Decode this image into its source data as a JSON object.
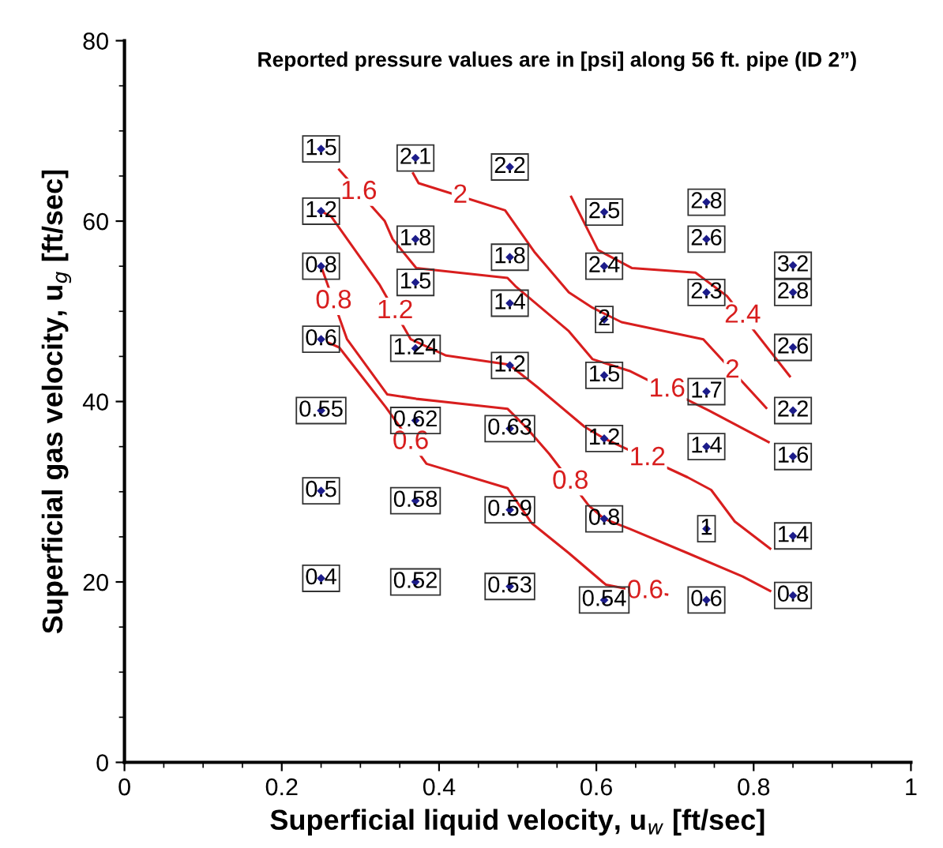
{
  "chart_data": {
    "type": "scatter",
    "title": "Reported pressure values are in [psi] along 56 ft. pipe (ID 2”)",
    "xlabel": "Superficial liquid velocity, u$_{w}$ [ft/sec]",
    "ylabel": "Superficial gas velocity, u$_{g}$ [ft/sec]",
    "xlim": [
      0,
      1
    ],
    "ylim": [
      0,
      80
    ],
    "xticks": [
      0,
      {
        "value": 0.05,
        "label": null
      },
      {
        "value": 0.1,
        "label": null
      },
      {
        "value": 0.15,
        "label": null
      },
      0.2,
      {
        "value": 0.25,
        "label": null
      },
      {
        "value": 0.3,
        "label": null
      },
      {
        "value": 0.35,
        "label": null
      },
      0.4,
      {
        "value": 0.45,
        "label": null
      },
      {
        "value": 0.5,
        "label": null
      },
      {
        "value": 0.55,
        "label": null
      },
      0.6,
      {
        "value": 0.65,
        "label": null
      },
      {
        "value": 0.7,
        "label": null
      },
      {
        "value": 0.75,
        "label": null
      },
      0.8,
      {
        "value": 0.85,
        "label": null
      },
      {
        "value": 0.9,
        "label": null
      },
      {
        "value": 0.95,
        "label": null
      },
      1
    ],
    "yticks": [
      0,
      {
        "value": 5,
        "label": null
      },
      {
        "value": 10,
        "label": null
      },
      {
        "value": 15,
        "label": null
      },
      20,
      {
        "value": 25,
        "label": null
      },
      {
        "value": 30,
        "label": null
      },
      {
        "value": 35,
        "label": null
      },
      40,
      {
        "value": 45,
        "label": null
      },
      {
        "value": 50,
        "label": null
      },
      {
        "value": 55,
        "label": null
      },
      60,
      {
        "value": 65,
        "label": null
      },
      {
        "value": 70,
        "label": null
      },
      {
        "value": 75,
        "label": null
      },
      80
    ],
    "grid": false,
    "series": [
      {
        "color": "#1c1c8a",
        "marker": "diamond",
        "x": [
          0.25,
          0.25,
          0.25,
          0.25,
          0.25,
          0.25,
          0.25,
          0.37,
          0.37,
          0.37,
          0.37,
          0.37,
          0.37,
          0.37,
          0.49,
          0.49,
          0.49,
          0.49,
          0.49,
          0.49,
          0.49,
          0.61,
          0.61,
          0.61,
          0.61,
          0.61,
          0.61,
          0.61,
          0.74,
          0.74,
          0.74,
          0.74,
          0.74,
          0.74,
          0.74,
          0.85,
          0.85,
          0.85,
          0.85,
          0.85,
          0.85,
          0.85
        ],
        "values": [
          68.0,
          61.1,
          55.0,
          46.9,
          39.0,
          30.1,
          20.4,
          67.0,
          58.0,
          53.2,
          45.9,
          37.9,
          29.0,
          20.0,
          66.0,
          56.0,
          50.9,
          44.0,
          37.0,
          28.0,
          19.5,
          61.0,
          55.0,
          49.1,
          42.9,
          35.9,
          27.0,
          18.0,
          62.1,
          58.0,
          52.1,
          41.1,
          35.0,
          25.9,
          18.0,
          55.1,
          52.1,
          46.0,
          39.0,
          33.9,
          25.1,
          18.5
        ]
      },
      {
        "type": "line",
        "color": "#d81e1e",
        "line_style": "solid",
        "x": [
          0.26,
          0.273,
          0.332,
          0.384,
          0.487,
          0.518,
          0.565,
          0.612,
          0.635,
          0.69
        ],
        "values": [
          46.5,
          46.0,
          39.4,
          33.1,
          30.4,
          26.5,
          23.2,
          19.7,
          19.3,
          18.6
        ]
      },
      {
        "type": "line",
        "color": "#d81e1e",
        "line_style": "solid",
        "x": [
          0.25,
          0.283,
          0.334,
          0.371,
          0.487,
          0.51,
          0.54,
          0.59,
          0.61,
          0.642,
          0.716,
          0.786,
          0.821
        ],
        "values": [
          55.0,
          46.9,
          40.8,
          40.3,
          39.2,
          37.2,
          34.2,
          28.5,
          27.0,
          25.9,
          23.2,
          20.6,
          19.0
        ]
      },
      {
        "type": "line",
        "color": "#d81e1e",
        "line_style": "solid",
        "x": [
          0.25,
          0.263,
          0.324,
          0.364,
          0.409,
          0.489,
          0.525,
          0.585,
          0.61,
          0.716,
          0.746,
          0.776,
          0.821
        ],
        "values": [
          61.1,
          60.5,
          53.0,
          46.9,
          45.1,
          44.1,
          41.6,
          37.2,
          35.9,
          31.6,
          30.2,
          26.7,
          23.7
        ]
      },
      {
        "type": "line",
        "color": "#d81e1e",
        "line_style": "solid",
        "x": [
          0.273,
          0.331,
          0.341,
          0.371,
          0.487,
          0.497,
          0.565,
          0.595,
          0.642,
          0.743,
          0.819
        ],
        "values": [
          65.7,
          60.0,
          58.0,
          54.8,
          53.7,
          52.8,
          47.8,
          44.7,
          43.4,
          39.0,
          35.5
        ]
      },
      {
        "type": "line",
        "color": "#d81e1e",
        "line_style": "solid",
        "x": [
          0.367,
          0.374,
          0.484,
          0.522,
          0.565,
          0.595,
          0.632,
          0.736,
          0.816
        ],
        "values": [
          65.3,
          64.2,
          61.2,
          56.5,
          52.1,
          50.4,
          48.8,
          46.9,
          39.3
        ]
      },
      {
        "type": "line",
        "color": "#d81e1e",
        "line_style": "solid",
        "x": [
          0.568,
          0.602,
          0.645,
          0.726,
          0.766,
          0.846
        ],
        "values": [
          62.7,
          56.8,
          54.8,
          54.3,
          51.7,
          42.8
        ]
      }
    ],
    "annotations": [
      {
        "text": "1.5",
        "x": 0.25,
        "y": 68.0
      },
      {
        "text": "1.2",
        "x": 0.25,
        "y": 61.1
      },
      {
        "text": "0.8",
        "x": 0.25,
        "y": 55.0
      },
      {
        "text": "0.6",
        "x": 0.25,
        "y": 46.9
      },
      {
        "text": "0.55",
        "x": 0.25,
        "y": 39.0
      },
      {
        "text": "0.5",
        "x": 0.25,
        "y": 30.1
      },
      {
        "text": "0.4",
        "x": 0.25,
        "y": 20.4
      },
      {
        "text": "2.1",
        "x": 0.37,
        "y": 67.0
      },
      {
        "text": "1.8",
        "x": 0.37,
        "y": 58.0
      },
      {
        "text": "1.5",
        "x": 0.37,
        "y": 53.2
      },
      {
        "text": "1.24",
        "x": 0.37,
        "y": 45.9
      },
      {
        "text": "0.62",
        "x": 0.37,
        "y": 37.9
      },
      {
        "text": "0.58",
        "x": 0.37,
        "y": 29.0
      },
      {
        "text": "0.52",
        "x": 0.37,
        "y": 20.0
      },
      {
        "text": "2.2",
        "x": 0.49,
        "y": 66.0
      },
      {
        "text": "1.8",
        "x": 0.49,
        "y": 56.0
      },
      {
        "text": "1.4",
        "x": 0.49,
        "y": 50.9
      },
      {
        "text": "1.2",
        "x": 0.49,
        "y": 44.0
      },
      {
        "text": "0.63",
        "x": 0.49,
        "y": 37.0
      },
      {
        "text": "0.59",
        "x": 0.49,
        "y": 28.0
      },
      {
        "text": "0.53",
        "x": 0.49,
        "y": 19.5
      },
      {
        "text": "2.5",
        "x": 0.61,
        "y": 61.0
      },
      {
        "text": "2.4",
        "x": 0.61,
        "y": 55.0
      },
      {
        "text": "2",
        "x": 0.61,
        "y": 49.1
      },
      {
        "text": "1.5",
        "x": 0.61,
        "y": 42.9
      },
      {
        "text": "1.2",
        "x": 0.61,
        "y": 35.9
      },
      {
        "text": "0.8",
        "x": 0.61,
        "y": 27.0
      },
      {
        "text": "0.54",
        "x": 0.61,
        "y": 18.0
      },
      {
        "text": "2.8",
        "x": 0.74,
        "y": 62.1
      },
      {
        "text": "2.6",
        "x": 0.74,
        "y": 58.0
      },
      {
        "text": "2.3",
        "x": 0.74,
        "y": 52.1
      },
      {
        "text": "1.7",
        "x": 0.74,
        "y": 41.1
      },
      {
        "text": "1.4",
        "x": 0.74,
        "y": 35.0
      },
      {
        "text": "1",
        "x": 0.74,
        "y": 25.9
      },
      {
        "text": "0.6",
        "x": 0.74,
        "y": 18.0
      },
      {
        "text": "3.2",
        "x": 0.85,
        "y": 55.1
      },
      {
        "text": "2.8",
        "x": 0.85,
        "y": 52.1
      },
      {
        "text": "2.6",
        "x": 0.85,
        "y": 46.0
      },
      {
        "text": "2.2",
        "x": 0.85,
        "y": 39.0
      },
      {
        "text": "1.6",
        "x": 0.85,
        "y": 33.9
      },
      {
        "text": "1.4",
        "x": 0.85,
        "y": 25.1
      },
      {
        "text": "0.8",
        "x": 0.85,
        "y": 18.5
      },
      {
        "text": "0.6",
        "x": 0.364,
        "y": 35.5
      },
      {
        "text": "0.6",
        "x": 0.662,
        "y": 18.96
      },
      {
        "text": "0.8",
        "x": 0.266,
        "y": 51.1
      },
      {
        "text": "0.8",
        "x": 0.567,
        "y": 31.1
      },
      {
        "text": "1.2",
        "x": 0.344,
        "y": 50.0
      },
      {
        "text": "1.2",
        "x": 0.665,
        "y": 33.7
      },
      {
        "text": "1.6",
        "x": 0.298,
        "y": 63.2
      },
      {
        "text": "1.6",
        "x": 0.69,
        "y": 41.3
      },
      {
        "text": "2",
        "x": 0.427,
        "y": 62.8
      },
      {
        "text": "2",
        "x": 0.773,
        "y": 43.4
      },
      {
        "text": "2.4",
        "x": 0.786,
        "y": 49.5
      }
    ]
  }
}
